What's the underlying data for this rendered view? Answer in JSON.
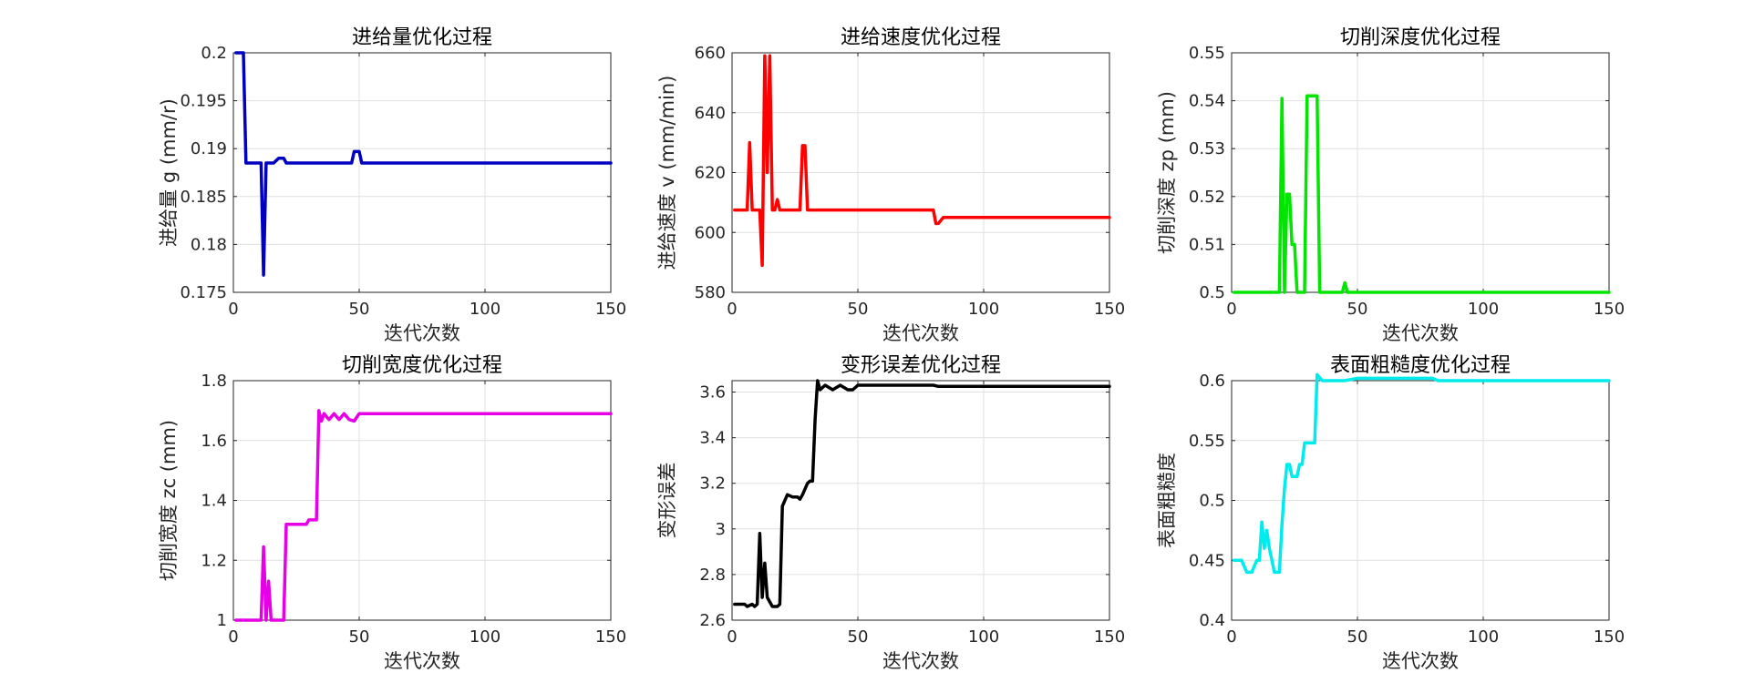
{
  "chart_data": [
    {
      "type": "line",
      "title": "进给量优化过程",
      "xlabel": "迭代次数",
      "ylabel": "进给量 g (mm/r)",
      "xlim": [
        0,
        150
      ],
      "ylim": [
        0.175,
        0.2
      ],
      "xticks": [
        "0",
        "50",
        "100",
        "150"
      ],
      "yticks": [
        "0.175",
        "0.18",
        "0.185",
        "0.19",
        "0.195",
        "0.2"
      ],
      "grid": true,
      "color": "#0000c0",
      "x": [
        1,
        4,
        5,
        7,
        9,
        11,
        12,
        13,
        14,
        15,
        16,
        18,
        20,
        21,
        47,
        48,
        50,
        51,
        55,
        150
      ],
      "y": [
        0.2,
        0.2,
        0.1885,
        0.1885,
        0.1885,
        0.1885,
        0.1768,
        0.1885,
        0.1885,
        0.1885,
        0.1885,
        0.189,
        0.189,
        0.1885,
        0.1885,
        0.1897,
        0.1897,
        0.1885,
        0.1885,
        0.1885
      ]
    },
    {
      "type": "line",
      "title": "进给速度优化过程",
      "xlabel": "迭代次数",
      "ylabel": "进给速度 v (mm/min)",
      "xlim": [
        0,
        150
      ],
      "ylim": [
        580,
        660
      ],
      "xticks": [
        "0",
        "50",
        "100",
        "150"
      ],
      "yticks": [
        "580",
        "600",
        "620",
        "640",
        "660"
      ],
      "grid": true,
      "color": "#ff0000",
      "x": [
        1,
        6,
        7,
        8,
        10,
        11,
        12,
        13,
        14,
        15,
        16,
        17,
        18,
        19,
        20,
        27,
        28,
        29,
        30,
        80,
        81,
        82,
        84,
        150
      ],
      "y": [
        607.5,
        607.5,
        630,
        607.5,
        607.5,
        607.5,
        589,
        659,
        620,
        659,
        607.5,
        607.5,
        611,
        607.5,
        607.5,
        607.5,
        629,
        629,
        607.5,
        607.5,
        603,
        603,
        605,
        605
      ]
    },
    {
      "type": "line",
      "title": "切削深度优化过程",
      "xlabel": "迭代次数",
      "ylabel": "切削深度 zp (mm)",
      "xlim": [
        0,
        150
      ],
      "ylim": [
        0.5,
        0.55
      ],
      "xticks": [
        "0",
        "50",
        "100",
        "150"
      ],
      "yticks": [
        "0.5",
        "0.51",
        "0.52",
        "0.53",
        "0.54",
        "0.55"
      ],
      "grid": true,
      "color": "#00e600",
      "x": [
        1,
        19,
        20,
        21,
        22,
        23,
        24,
        25,
        26,
        27,
        28,
        29,
        30,
        31,
        32,
        34,
        35,
        36,
        44,
        45,
        46,
        150
      ],
      "y": [
        0.5,
        0.5,
        0.5405,
        0.5,
        0.5205,
        0.5205,
        0.51,
        0.51,
        0.5,
        0.5,
        0.5,
        0.5,
        0.541,
        0.541,
        0.541,
        0.541,
        0.5,
        0.5,
        0.5,
        0.502,
        0.5,
        0.5
      ]
    },
    {
      "type": "line",
      "title": "切削宽度优化过程",
      "xlabel": "迭代次数",
      "ylabel": "切削宽度 zc (mm)",
      "xlim": [
        0,
        150
      ],
      "ylim": [
        1,
        1.8
      ],
      "xticks": [
        "0",
        "50",
        "100",
        "150"
      ],
      "yticks": [
        "1",
        "1.2",
        "1.4",
        "1.6",
        "1.8"
      ],
      "grid": true,
      "color": "#e600e6",
      "x": [
        1,
        11,
        12,
        13,
        14,
        15,
        20,
        21,
        29,
        30,
        33,
        34,
        35,
        36,
        38,
        40,
        42,
        44,
        46,
        48,
        50,
        150
      ],
      "y": [
        1,
        1,
        1.245,
        1,
        1.13,
        1,
        1,
        1.32,
        1.32,
        1.335,
        1.335,
        1.7,
        1.665,
        1.69,
        1.67,
        1.69,
        1.67,
        1.69,
        1.67,
        1.665,
        1.69,
        1.69
      ]
    },
    {
      "type": "line",
      "title": "变形误差优化过程",
      "xlabel": "迭代次数",
      "ylabel": "变形误差",
      "xlim": [
        0,
        150
      ],
      "ylim": [
        2.6,
        3.65
      ],
      "xticks": [
        "0",
        "50",
        "100",
        "150"
      ],
      "yticks": [
        "2.6",
        "2.8",
        "3",
        "3.2",
        "3.4",
        "3.6"
      ],
      "grid": true,
      "color": "#000000",
      "x": [
        1,
        5,
        6,
        8,
        9,
        10,
        11,
        12,
        13,
        14,
        15,
        16,
        18,
        19,
        20,
        22,
        24,
        26,
        27,
        28,
        30,
        31,
        32,
        33,
        34,
        35,
        37,
        40,
        43,
        46,
        48,
        50,
        80,
        82,
        150
      ],
      "y": [
        2.67,
        2.67,
        2.66,
        2.67,
        2.66,
        2.67,
        2.98,
        2.7,
        2.85,
        2.7,
        2.68,
        2.66,
        2.66,
        2.67,
        3.1,
        3.15,
        3.14,
        3.14,
        3.13,
        3.15,
        3.2,
        3.21,
        3.21,
        3.48,
        3.65,
        3.61,
        3.63,
        3.61,
        3.63,
        3.61,
        3.61,
        3.63,
        3.63,
        3.625,
        3.625
      ]
    },
    {
      "type": "line",
      "title": "表面粗糙度优化过程",
      "xlabel": "迭代次数",
      "ylabel": "表面粗糙度",
      "xlim": [
        0,
        150
      ],
      "ylim": [
        0.4,
        0.6
      ],
      "xticks": [
        "0",
        "50",
        "100",
        "150"
      ],
      "yticks": [
        "0.4",
        "0.45",
        "0.5",
        "0.55",
        "0.6"
      ],
      "grid": true,
      "color": "#00ecec",
      "x": [
        1,
        4,
        6,
        8,
        10,
        11,
        12,
        13,
        14,
        15,
        16,
        17,
        18,
        19,
        20,
        21,
        22,
        23,
        24,
        26,
        27,
        28,
        29,
        30,
        33,
        34,
        36,
        40,
        45,
        50,
        80,
        82,
        150
      ],
      "y": [
        0.45,
        0.45,
        0.44,
        0.44,
        0.45,
        0.45,
        0.482,
        0.46,
        0.475,
        0.46,
        0.45,
        0.44,
        0.44,
        0.44,
        0.48,
        0.51,
        0.53,
        0.53,
        0.52,
        0.52,
        0.53,
        0.53,
        0.548,
        0.548,
        0.548,
        0.605,
        0.6,
        0.6,
        0.6,
        0.602,
        0.602,
        0.6,
        0.6
      ]
    }
  ]
}
